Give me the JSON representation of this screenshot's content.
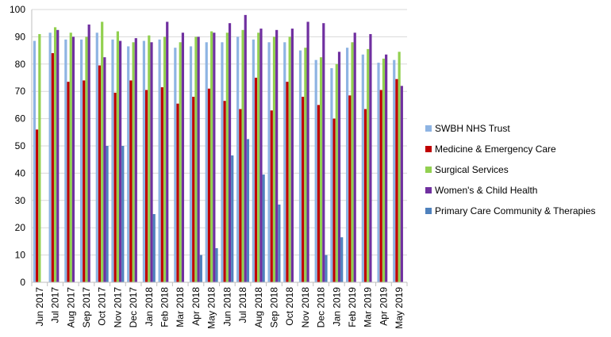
{
  "chart_data": {
    "type": "bar",
    "title": "",
    "xlabel": "",
    "ylabel": "",
    "ylim": [
      0,
      100
    ],
    "yticks": [
      0,
      10,
      20,
      30,
      40,
      50,
      60,
      70,
      80,
      90,
      100
    ],
    "grid": "horizontal",
    "legend_position": "right",
    "categories": [
      "Jun 2017",
      "Jul 2017",
      "Aug 2017",
      "Sep 2017",
      "Oct 2017",
      "Nov 2017",
      "Dec 2017",
      "Jan 2018",
      "Feb 2018",
      "Mar 2018",
      "Apr 2018",
      "May 2018",
      "Jun 2018",
      "Jul 2018",
      "Aug 2018",
      "Sep 2018",
      "Oct 2018",
      "Nov 2018",
      "Dec 2018",
      "Jan 2019",
      "Feb 2019",
      "Mar 2019",
      "Apr 2019",
      "May 2019"
    ],
    "series": [
      {
        "name": "SWBH NHS Trust",
        "color": "#8eb4e3",
        "values": [
          88.5,
          91.5,
          89,
          89,
          91.5,
          89,
          86.5,
          88.5,
          89,
          86,
          86.5,
          88,
          88,
          90,
          89,
          88,
          88,
          85,
          81.5,
          78.5,
          86,
          83.5,
          80.5,
          81.5
        ]
      },
      {
        "name": "Medicine & Emergency Care",
        "color": "#c00000",
        "values": [
          56,
          84,
          73.5,
          74,
          79.5,
          69.5,
          74,
          70.5,
          71.5,
          65.5,
          68,
          71,
          66.5,
          63.5,
          75,
          63,
          73.5,
          68,
          65,
          60,
          68.5,
          63.5,
          70.5,
          74.5
        ]
      },
      {
        "name": "Surgical Services",
        "color": "#92d050",
        "values": [
          91,
          93.5,
          91.5,
          90,
          95.5,
          92,
          88,
          90.5,
          90,
          88,
          90,
          92,
          91.5,
          92.5,
          91.5,
          90,
          90,
          86,
          82.5,
          80,
          88,
          85.5,
          82,
          84.5
        ]
      },
      {
        "name": "Women's & Child Health",
        "color": "#7030a0",
        "values": [
          null,
          92.5,
          90,
          94.5,
          82.5,
          88.5,
          89.5,
          88,
          95.5,
          91.5,
          90,
          91.5,
          95,
          98,
          93,
          92.5,
          93,
          95.5,
          95,
          84.5,
          91.5,
          91,
          83.5,
          72
        ]
      },
      {
        "name": "Primary Care Community & Therapies",
        "color": "#4f81bd",
        "values": [
          null,
          null,
          null,
          null,
          50,
          50,
          null,
          25,
          null,
          null,
          10,
          12.5,
          46.5,
          52.5,
          39.5,
          28.5,
          null,
          null,
          10,
          16.5,
          null,
          null,
          null,
          null
        ]
      }
    ]
  }
}
